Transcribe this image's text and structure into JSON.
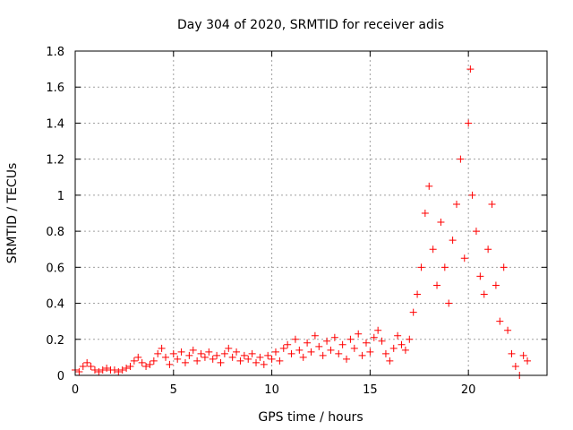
{
  "chart_data": {
    "type": "scatter",
    "title": "Day 304 of 2020, SRMTID for receiver adis",
    "xlabel": "GPS time / hours",
    "ylabel": "SRMTID / TECUs",
    "xlim": [
      0,
      24
    ],
    "ylim": [
      0,
      1.8
    ],
    "x_ticks": [
      0,
      5,
      10,
      15,
      20
    ],
    "x_tick_labels": [
      "0",
      "5",
      "10",
      "15",
      "20"
    ],
    "y_ticks": [
      0,
      0.2,
      0.4,
      0.6,
      0.8,
      1.0,
      1.2,
      1.4,
      1.6,
      1.8
    ],
    "y_tick_labels": [
      "0",
      "0.2",
      "0.4",
      "0.6",
      "0.8",
      "1",
      "1.2",
      "1.4",
      "1.6",
      "1.8"
    ],
    "grid": true,
    "marker": "plus",
    "color": "#ff0000",
    "series": [
      {
        "name": "SRMTID",
        "points": [
          [
            0.0,
            0.03
          ],
          [
            0.2,
            0.02
          ],
          [
            0.4,
            0.05
          ],
          [
            0.6,
            0.07
          ],
          [
            0.8,
            0.05
          ],
          [
            1.0,
            0.03
          ],
          [
            1.2,
            0.02
          ],
          [
            1.4,
            0.03
          ],
          [
            1.6,
            0.04
          ],
          [
            1.8,
            0.03
          ],
          [
            2.0,
            0.03
          ],
          [
            2.2,
            0.02
          ],
          [
            2.4,
            0.03
          ],
          [
            2.6,
            0.04
          ],
          [
            2.8,
            0.05
          ],
          [
            3.0,
            0.08
          ],
          [
            3.2,
            0.1
          ],
          [
            3.4,
            0.07
          ],
          [
            3.6,
            0.05
          ],
          [
            3.8,
            0.06
          ],
          [
            4.0,
            0.08
          ],
          [
            4.2,
            0.12
          ],
          [
            4.4,
            0.15
          ],
          [
            4.6,
            0.1
          ],
          [
            4.8,
            0.06
          ],
          [
            5.0,
            0.12
          ],
          [
            5.2,
            0.09
          ],
          [
            5.4,
            0.13
          ],
          [
            5.6,
            0.07
          ],
          [
            5.8,
            0.11
          ],
          [
            6.0,
            0.14
          ],
          [
            6.2,
            0.08
          ],
          [
            6.4,
            0.12
          ],
          [
            6.6,
            0.1
          ],
          [
            6.8,
            0.13
          ],
          [
            7.0,
            0.09
          ],
          [
            7.2,
            0.11
          ],
          [
            7.4,
            0.07
          ],
          [
            7.6,
            0.12
          ],
          [
            7.8,
            0.15
          ],
          [
            8.0,
            0.1
          ],
          [
            8.2,
            0.13
          ],
          [
            8.4,
            0.08
          ],
          [
            8.6,
            0.11
          ],
          [
            8.8,
            0.09
          ],
          [
            9.0,
            0.12
          ],
          [
            9.2,
            0.07
          ],
          [
            9.4,
            0.1
          ],
          [
            9.6,
            0.06
          ],
          [
            9.8,
            0.11
          ],
          [
            10.0,
            0.09
          ],
          [
            10.2,
            0.13
          ],
          [
            10.4,
            0.08
          ],
          [
            10.6,
            0.15
          ],
          [
            10.8,
            0.17
          ],
          [
            11.0,
            0.12
          ],
          [
            11.2,
            0.2
          ],
          [
            11.4,
            0.14
          ],
          [
            11.6,
            0.1
          ],
          [
            11.8,
            0.18
          ],
          [
            12.0,
            0.13
          ],
          [
            12.2,
            0.22
          ],
          [
            12.4,
            0.16
          ],
          [
            12.6,
            0.11
          ],
          [
            12.8,
            0.19
          ],
          [
            13.0,
            0.14
          ],
          [
            13.2,
            0.21
          ],
          [
            13.4,
            0.12
          ],
          [
            13.6,
            0.17
          ],
          [
            13.8,
            0.09
          ],
          [
            14.0,
            0.2
          ],
          [
            14.2,
            0.15
          ],
          [
            14.4,
            0.23
          ],
          [
            14.6,
            0.11
          ],
          [
            14.8,
            0.18
          ],
          [
            15.0,
            0.13
          ],
          [
            15.2,
            0.21
          ],
          [
            15.4,
            0.25
          ],
          [
            15.6,
            0.19
          ],
          [
            15.8,
            0.12
          ],
          [
            16.0,
            0.08
          ],
          [
            16.2,
            0.15
          ],
          [
            16.4,
            0.22
          ],
          [
            16.6,
            0.17
          ],
          [
            16.8,
            0.14
          ],
          [
            17.0,
            0.2
          ],
          [
            17.2,
            0.35
          ],
          [
            17.4,
            0.45
          ],
          [
            17.6,
            0.6
          ],
          [
            17.8,
            0.9
          ],
          [
            18.0,
            1.05
          ],
          [
            18.2,
            0.7
          ],
          [
            18.4,
            0.5
          ],
          [
            18.6,
            0.85
          ],
          [
            18.8,
            0.6
          ],
          [
            19.0,
            0.4
          ],
          [
            19.2,
            0.75
          ],
          [
            19.4,
            0.95
          ],
          [
            19.6,
            1.2
          ],
          [
            19.8,
            0.65
          ],
          [
            20.0,
            1.4
          ],
          [
            20.1,
            1.7
          ],
          [
            20.2,
            1.0
          ],
          [
            20.4,
            0.8
          ],
          [
            20.6,
            0.55
          ],
          [
            20.8,
            0.45
          ],
          [
            21.0,
            0.7
          ],
          [
            21.2,
            0.95
          ],
          [
            21.4,
            0.5
          ],
          [
            21.6,
            0.3
          ],
          [
            21.8,
            0.6
          ],
          [
            22.0,
            0.25
          ],
          [
            22.2,
            0.12
          ],
          [
            22.4,
            0.05
          ],
          [
            22.6,
            0.0
          ],
          [
            22.8,
            0.11
          ],
          [
            23.0,
            0.08
          ]
        ]
      }
    ]
  }
}
